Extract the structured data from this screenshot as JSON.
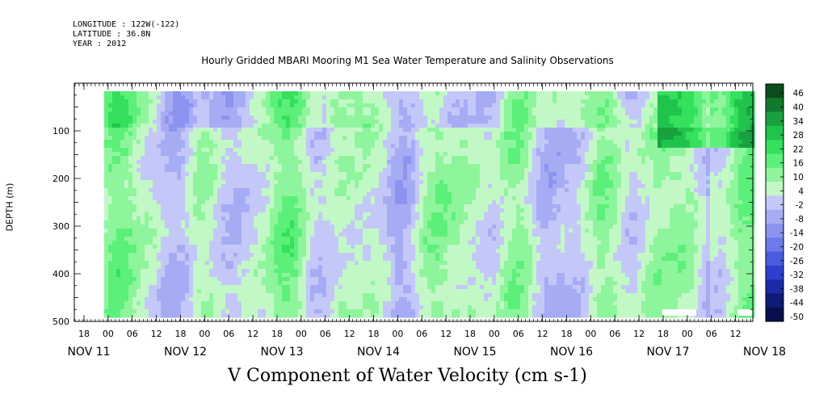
{
  "header": {
    "longitude": "LONGITUDE : 122W(-122)",
    "latitude": "LATITUDE : 36.8N",
    "year": "YEAR : 2012"
  },
  "title": "Hourly Gridded MBARI Mooring M1 Sea Water Temperature and Salinity Observations",
  "bottom_title": "V Component of Water Velocity (cm s-1)",
  "chart_data": {
    "type": "heatmap",
    "title": "Hourly Gridded MBARI Mooring M1 Sea Water Temperature and Salinity Observations",
    "subtitle": "V Component of Water Velocity (cm s-1)",
    "ylabel": "DEPTH (m)",
    "ylim": [
      500,
      0
    ],
    "y_ticks": [
      "100",
      "200",
      "300",
      "400",
      "500"
    ],
    "x_hour_ticks": [
      "18",
      "00",
      "06",
      "12",
      "18",
      "00",
      "06",
      "12",
      "18",
      "00",
      "06",
      "12",
      "18",
      "00",
      "06",
      "12",
      "18",
      "00",
      "06",
      "12",
      "18",
      "00",
      "06",
      "12",
      "18",
      "00",
      "06",
      "12"
    ],
    "x_day_labels": [
      "NOV 11",
      "NOV 12",
      "NOV 13",
      "NOV 14",
      "NOV 15",
      "NOV 16",
      "NOV 17",
      "NOV 18"
    ],
    "colorbar": {
      "levels": [
        "46",
        "40",
        "34",
        "28",
        "22",
        "16",
        "10",
        "4",
        "-2",
        "-8",
        "-14",
        "-20",
        "-26",
        "-32",
        "-38",
        "-44",
        "-50"
      ],
      "colors_high_to_low": [
        "#0b4d1c",
        "#127a2e",
        "#18a23f",
        "#20c44c",
        "#34e05c",
        "#5cf07a",
        "#8ef59c",
        "#c2f8c6",
        "#c4c8f8",
        "#a6acf4",
        "#8c94f0",
        "#6e7aea",
        "#4c5ce0",
        "#2e3fce",
        "#1c2aa6",
        "#101a78",
        "#080f4c"
      ]
    }
  }
}
